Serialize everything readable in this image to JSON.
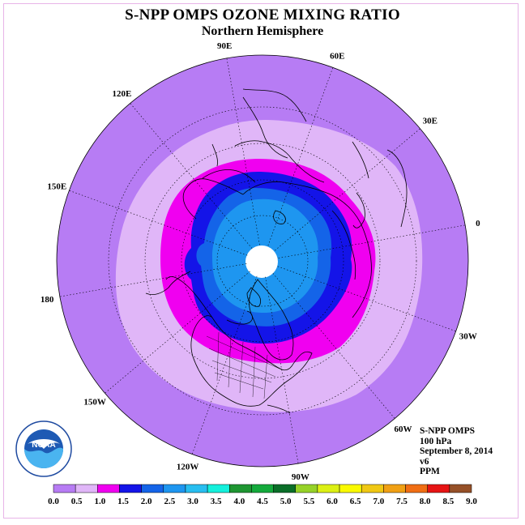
{
  "title": "S-NPP OMPS OZONE MIXING RATIO",
  "subtitle": "Northern Hemisphere",
  "info": {
    "instrument": "S-NPP OMPS",
    "level": "100 hPa",
    "date": "September 8, 2014",
    "version": "v6",
    "units": "PPM"
  },
  "logo_text": "NOAA",
  "longitude_labels": [
    {
      "label": "90E",
      "lon": 90
    },
    {
      "label": "60E",
      "lon": 60
    },
    {
      "label": "30E",
      "lon": 30
    },
    {
      "label": "0",
      "lon": 0
    },
    {
      "label": "30W",
      "lon": -30
    },
    {
      "label": "60W",
      "lon": -60
    },
    {
      "label": "90W",
      "lon": -90
    },
    {
      "label": "120W",
      "lon": -120
    },
    {
      "label": "150W",
      "lon": -150
    },
    {
      "label": "180",
      "lon": 180
    },
    {
      "label": "150E",
      "lon": 150
    },
    {
      "label": "120E",
      "lon": 120
    }
  ],
  "colorbar": {
    "ticks": [
      "0.0",
      "0.5",
      "1.0",
      "1.5",
      "2.0",
      "2.5",
      "3.0",
      "3.5",
      "4.0",
      "4.5",
      "5.0",
      "5.5",
      "6.0",
      "6.5",
      "7.0",
      "7.5",
      "8.0",
      "8.5",
      "9.0"
    ],
    "colors": [
      "#b77cf4",
      "#e0b6f8",
      "#f000f0",
      "#1414e8",
      "#1464e8",
      "#1e96f0",
      "#28bef0",
      "#14f0dc",
      "#1e9632",
      "#14aa3c",
      "#0a6e28",
      "#96d228",
      "#dcf014",
      "#fafa00",
      "#f0c814",
      "#f0a014",
      "#f06e14",
      "#e61414",
      "#965028"
    ],
    "vmin": 0.0,
    "vmax": 9.0
  },
  "ozone_bands": [
    {
      "range": "0.5-1.0",
      "color": "#e0b6f8"
    },
    {
      "range": "1.0-1.5",
      "color": "#f000f0"
    },
    {
      "range": "1.5-2.0",
      "color": "#1414e8"
    },
    {
      "range": "2.0-2.5",
      "color": "#1464e8"
    },
    {
      "range": "2.5-3.0",
      "color": "#1e96f0"
    }
  ]
}
